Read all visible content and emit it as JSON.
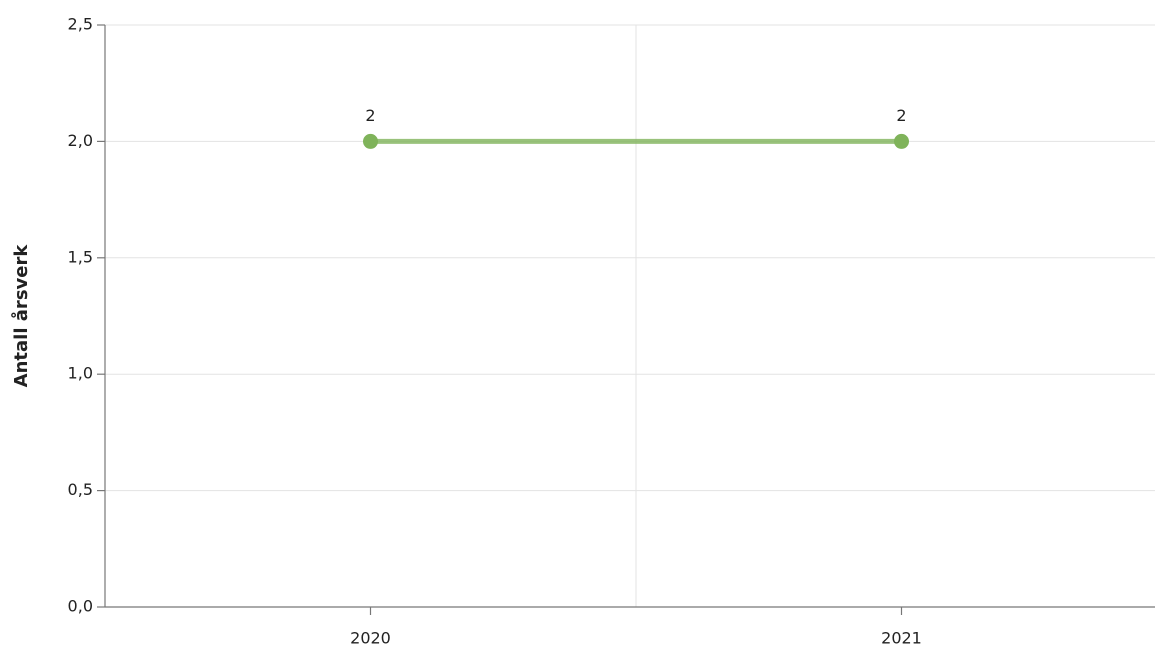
{
  "chart_data": {
    "type": "line",
    "y_label": "Antall årsverk",
    "categories": [
      "2020",
      "2021"
    ],
    "series": [
      {
        "name": "Antall årsverk",
        "color": "#7fb35a",
        "values": [
          2,
          2
        ]
      }
    ],
    "ylim": [
      0,
      2.5
    ],
    "yticks": [
      {
        "value": 0,
        "label": "0,0"
      },
      {
        "value": 0.5,
        "label": "0,5"
      },
      {
        "value": 1,
        "label": "1,0"
      },
      {
        "value": 1.5,
        "label": "1,5"
      },
      {
        "value": 2,
        "label": "2,0"
      },
      {
        "value": 2.5,
        "label": "2,5"
      }
    ],
    "grid": true
  }
}
